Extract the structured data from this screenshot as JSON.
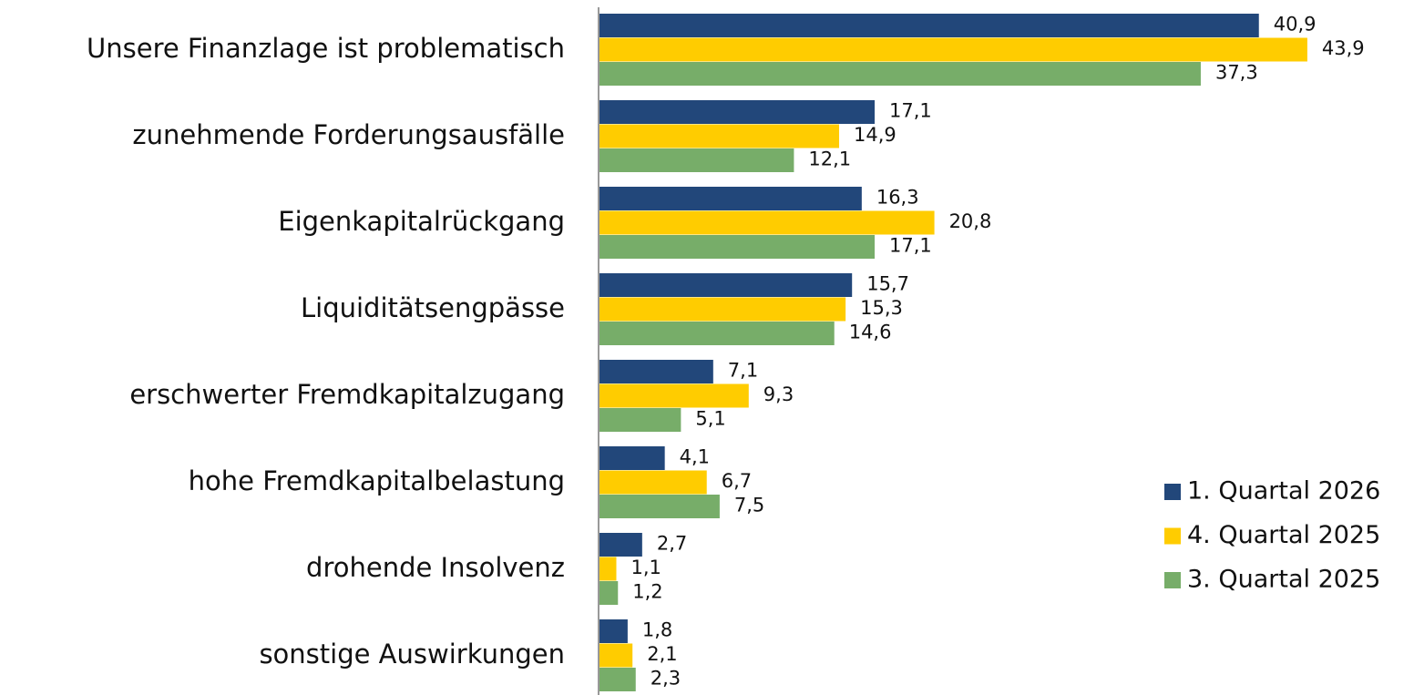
{
  "chart_data": {
    "type": "barh",
    "categories": [
      "Unsere Finanzlage ist problematisch",
      "zunehmende Forderungsausfälle",
      "Eigenkapitalrückgang",
      "Liquiditätsengpässe",
      "erschwerter Fremdkapitalzugang",
      "hohe Fremdkapitalbelastung",
      "drohende Insolvenz",
      "sonstige Auswirkungen"
    ],
    "series": [
      {
        "name": "1. Quartal 2026",
        "color": "#22477a",
        "values": [
          40.9,
          17.1,
          16.3,
          15.7,
          7.1,
          4.1,
          2.7,
          1.8
        ],
        "value_labels": [
          "40,9",
          "17,1",
          "16,3",
          "15,7",
          "7,1",
          "4,1",
          "2,7",
          "1,8"
        ]
      },
      {
        "name": "4. Quartal 2025",
        "color": "#ffcc00",
        "values": [
          43.9,
          14.9,
          20.8,
          15.3,
          9.3,
          6.7,
          1.1,
          2.1
        ],
        "value_labels": [
          "43,9",
          "14,9",
          "20,8",
          "15,3",
          "9,3",
          "6,7",
          "1,1",
          "2,1"
        ]
      },
      {
        "name": "3. Quartal 2025",
        "color": "#77ad69",
        "values": [
          37.3,
          12.1,
          17.1,
          14.6,
          5.1,
          7.5,
          1.2,
          2.3
        ],
        "value_labels": [
          "37,3",
          "12,1",
          "17,1",
          "14,6",
          "5,1",
          "7,5",
          "1,2",
          "2,3"
        ]
      }
    ],
    "xlim": [
      0,
      50
    ],
    "legend": "right"
  }
}
